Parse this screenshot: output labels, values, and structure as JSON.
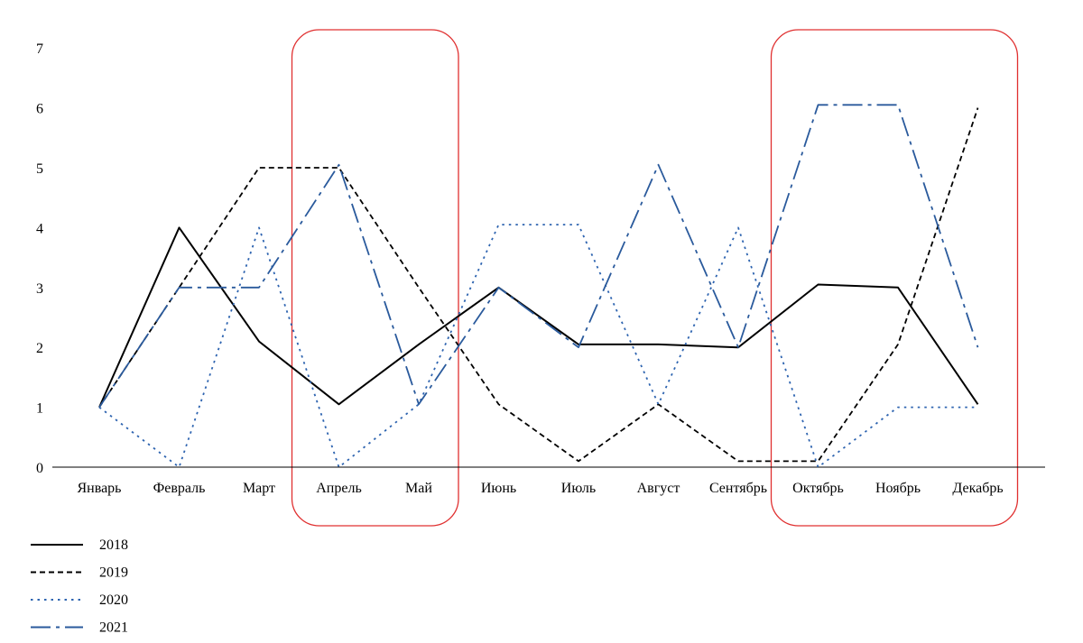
{
  "chart_data": {
    "type": "line",
    "title": "",
    "xlabel": "",
    "ylabel": "",
    "ylim": [
      0,
      7
    ],
    "yticks": [
      "0",
      "1",
      "2",
      "3",
      "4",
      "5",
      "6",
      "7"
    ],
    "categories": [
      "Январь",
      "Февраль",
      "Март",
      "Апрель",
      "Май",
      "Июнь",
      "Июль",
      "Август",
      "Сентябрь",
      "Октябрь",
      "Ноябрь",
      "Декабрь"
    ],
    "series": [
      {
        "name": "2018",
        "values": [
          1,
          4,
          2.1,
          1.05,
          2.05,
          3,
          2.05,
          2.05,
          2,
          3.05,
          3,
          1.05
        ],
        "color": "#000000",
        "dash": "solid"
      },
      {
        "name": "2019",
        "values": [
          1,
          3,
          5,
          5,
          3,
          1.05,
          0.1,
          1.05,
          0.1,
          0.1,
          2.05,
          6
        ],
        "color": "#000000",
        "dash": "dash"
      },
      {
        "name": "2020",
        "values": [
          1,
          0,
          4,
          0,
          1.05,
          4.05,
          4.05,
          1.05,
          4,
          0,
          1,
          1
        ],
        "color": "#2e64b0",
        "dash": "dot"
      },
      {
        "name": "2021",
        "values": [
          1,
          3,
          3,
          5.05,
          1.05,
          3,
          2,
          5.05,
          2,
          6.05,
          6.05,
          2
        ],
        "color": "#2a5a9c",
        "dash": "dashdot"
      }
    ],
    "highlights": [
      {
        "from": "Апрель",
        "to": "Май",
        "color": "#e03030"
      },
      {
        "from": "Октябрь",
        "to": "Декабрь",
        "color": "#e03030"
      }
    ],
    "legend_position": "bottom-left",
    "grid": false
  }
}
